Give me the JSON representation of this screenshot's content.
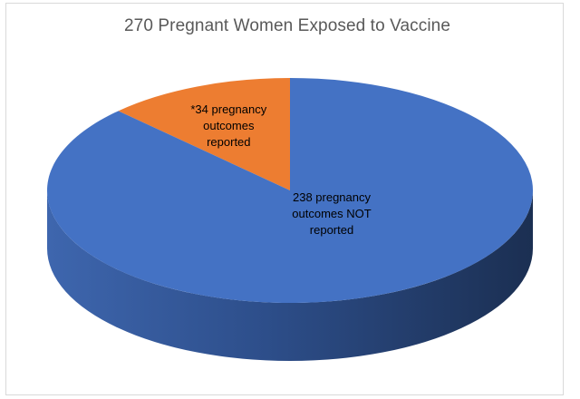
{
  "chart_data": {
    "type": "pie",
    "title": "270 Pregnant Women Exposed to Vaccine",
    "slices": [
      {
        "label_lines": [
          "*34 pregnancy",
          "outcomes",
          "reported"
        ],
        "value": 34,
        "color": "#ED7D31"
      },
      {
        "label_lines": [
          "238 pregnancy",
          "outcomes NOT",
          "reported"
        ],
        "value": 238,
        "color": "#4472C4"
      }
    ],
    "style": "3d",
    "legend": "none",
    "grid": false
  }
}
